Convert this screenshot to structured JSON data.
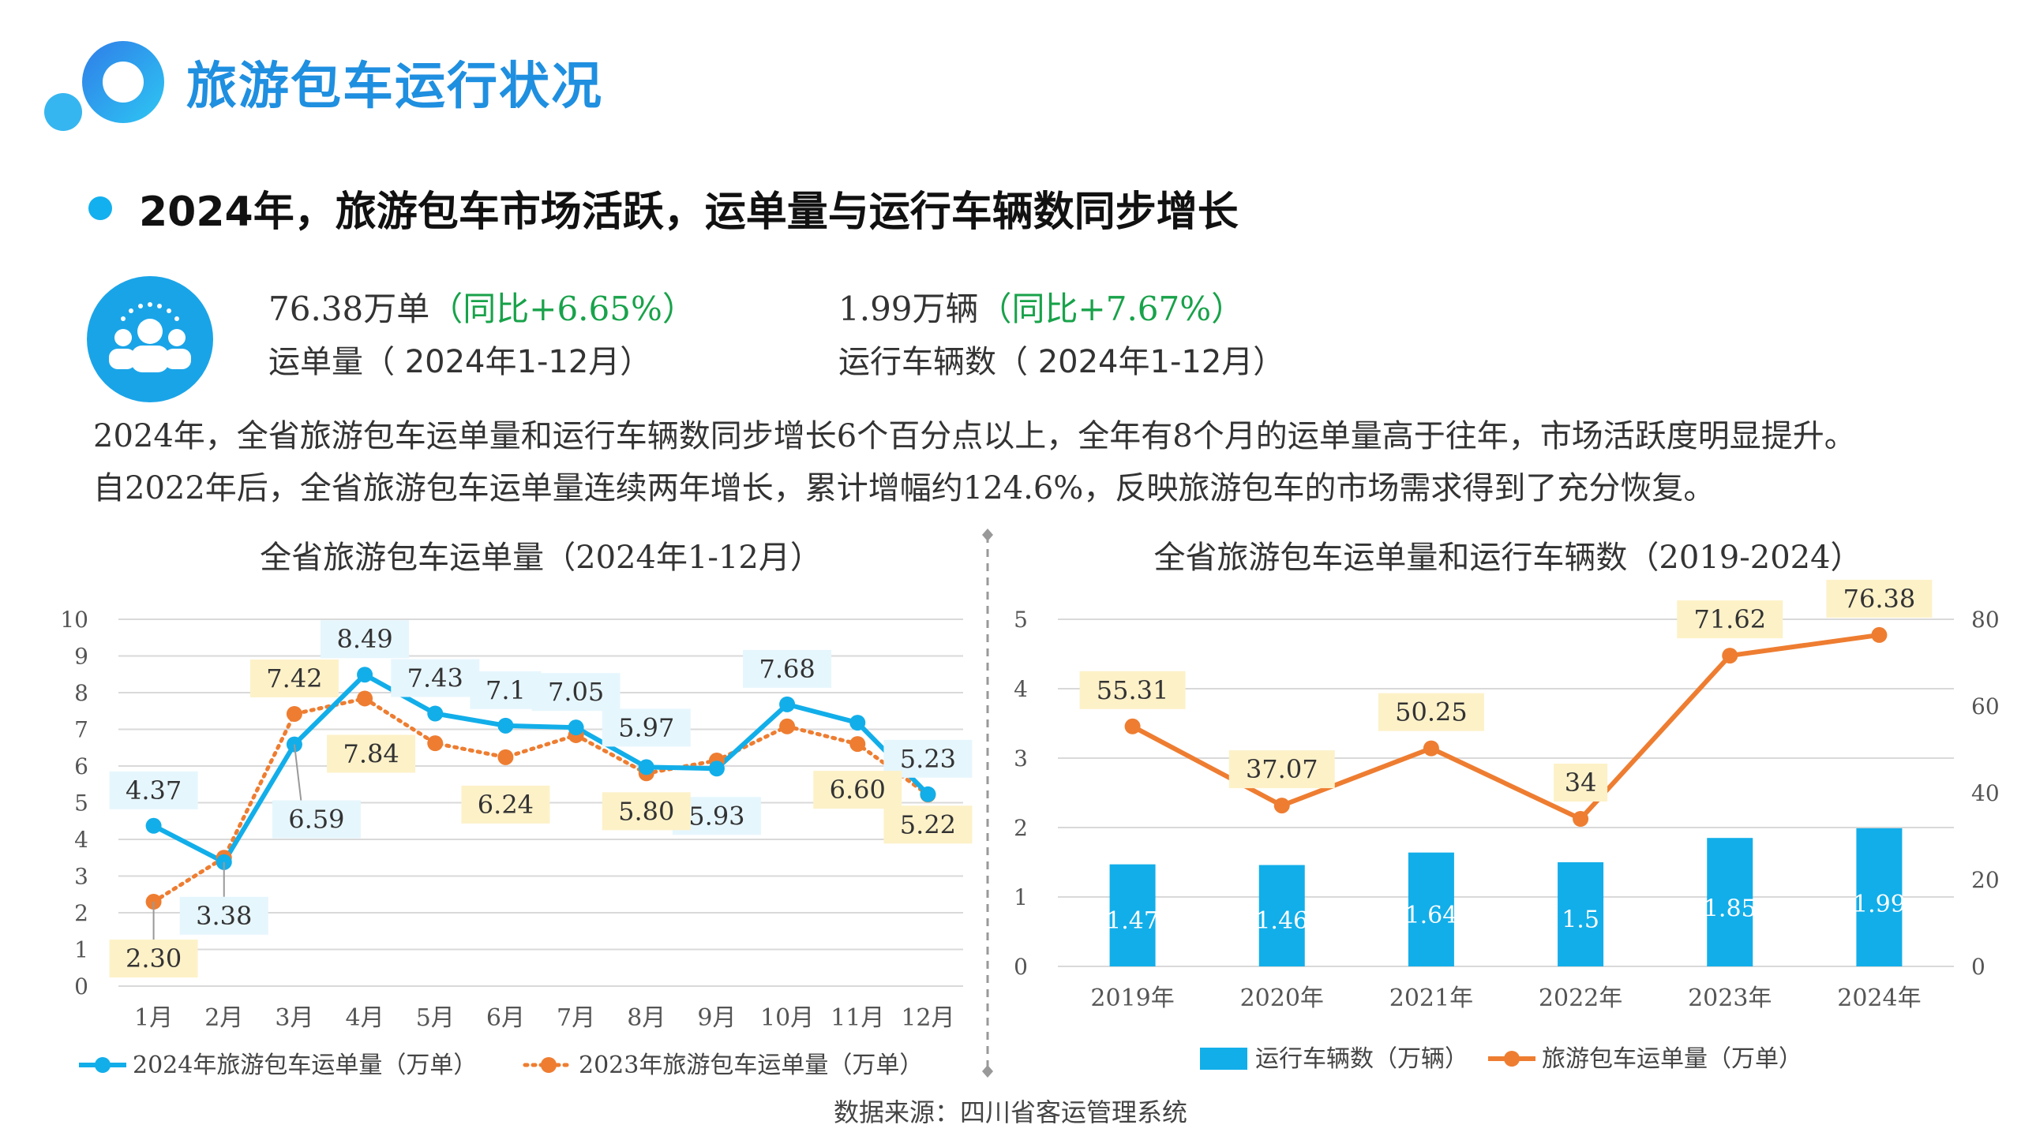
{
  "page": {
    "title": "旅游包车运行状况",
    "headline": "2024年，旅游包车市场活跃，运单量与运行车辆数同步增长",
    "kpis": [
      {
        "value": "76.38万单",
        "change": "（同比+6.65%）",
        "label": "运单量（ 2024年1-12月）"
      },
      {
        "value": "1.99万辆",
        "change": "（同比+7.67%）",
        "label": "运行车辆数（ 2024年1-12月）"
      }
    ],
    "paragraph": [
      "2024年，全省旅游包车运单量和运行车辆数同步增长6个百分点以上，全年有8个月的运单量高于往年，市场活跃度明显提升。",
      "自2022年后，全省旅游包车运单量连续两年增长，累计增幅约124.6%，反映旅游包车的市场需求得到了充分恢复。"
    ],
    "source": "数据来源：四川省客运管理系统",
    "colors": {
      "accent": "#1f8fe0",
      "blue": "#12aee9",
      "orange": "#ee7d31",
      "green": "#18a24a",
      "labelBlue": "#e6f6fd",
      "labelOrange": "#fdf1c8"
    },
    "icons": {
      "logo": "ring-logo-icon",
      "kpi": "users-group-icon"
    }
  },
  "chart_data": [
    {
      "type": "line",
      "title": "全省旅游包车运单量（2024年1-12月）",
      "categories": [
        "1月",
        "2月",
        "3月",
        "4月",
        "5月",
        "6月",
        "7月",
        "8月",
        "9月",
        "10月",
        "11月",
        "12月"
      ],
      "series": [
        {
          "name": "2024年旅游包车运单量（万单）",
          "values": [
            4.37,
            3.38,
            6.59,
            8.49,
            7.43,
            7.1,
            7.05,
            5.97,
            5.93,
            7.68,
            7.18,
            5.23
          ],
          "labels": [
            "4.37",
            "3.38",
            "6.59",
            "8.49",
            "7.43",
            "7.1",
            "7.05",
            "5.97",
            "5.93",
            "7.68",
            "",
            "5.23"
          ]
        },
        {
          "name": "2023年旅游包车运单量（万单）",
          "values": [
            2.3,
            3.5,
            7.42,
            7.84,
            6.62,
            6.24,
            6.84,
            5.8,
            6.15,
            7.08,
            6.6,
            5.22
          ],
          "labels": [
            "2.30",
            "",
            "7.42",
            "7.84",
            "",
            "6.24",
            "",
            "5.80",
            "",
            "",
            "6.60",
            "5.22"
          ]
        }
      ],
      "y_ticks": [
        "0",
        "1",
        "2",
        "3",
        "4",
        "5",
        "6",
        "7",
        "8",
        "9",
        "10"
      ],
      "ylim": [
        0,
        10
      ],
      "grid": true,
      "legend": "bottom"
    },
    {
      "type": "bar",
      "title": "全省旅游包车运单量和运行车辆数（2019-2024）",
      "categories": [
        "2019年",
        "2020年",
        "2021年",
        "2022年",
        "2023年",
        "2024年"
      ],
      "series": [
        {
          "name": "运行车辆数（万辆）",
          "type": "bar",
          "axis": "left",
          "values": [
            1.47,
            1.46,
            1.64,
            1.5,
            1.85,
            1.99
          ],
          "labels": [
            "1.47",
            "1.46",
            "1.64",
            "1.5",
            "1.85",
            "1.99"
          ]
        },
        {
          "name": "旅游包车运单量（万单）",
          "type": "line",
          "axis": "right",
          "values": [
            55.31,
            37.07,
            50.25,
            34,
            71.62,
            76.38
          ],
          "labels": [
            "55.31",
            "37.07",
            "50.25",
            "34",
            "71.62",
            "76.38"
          ]
        }
      ],
      "y_ticks": [
        "0",
        "1",
        "2",
        "3",
        "4",
        "5"
      ],
      "ylim": [
        0,
        5
      ],
      "y2_ticks": [
        "0",
        "20",
        "40",
        "60",
        "80"
      ],
      "y2lim": [
        0,
        80
      ],
      "grid": true,
      "legend": "bottom"
    }
  ]
}
